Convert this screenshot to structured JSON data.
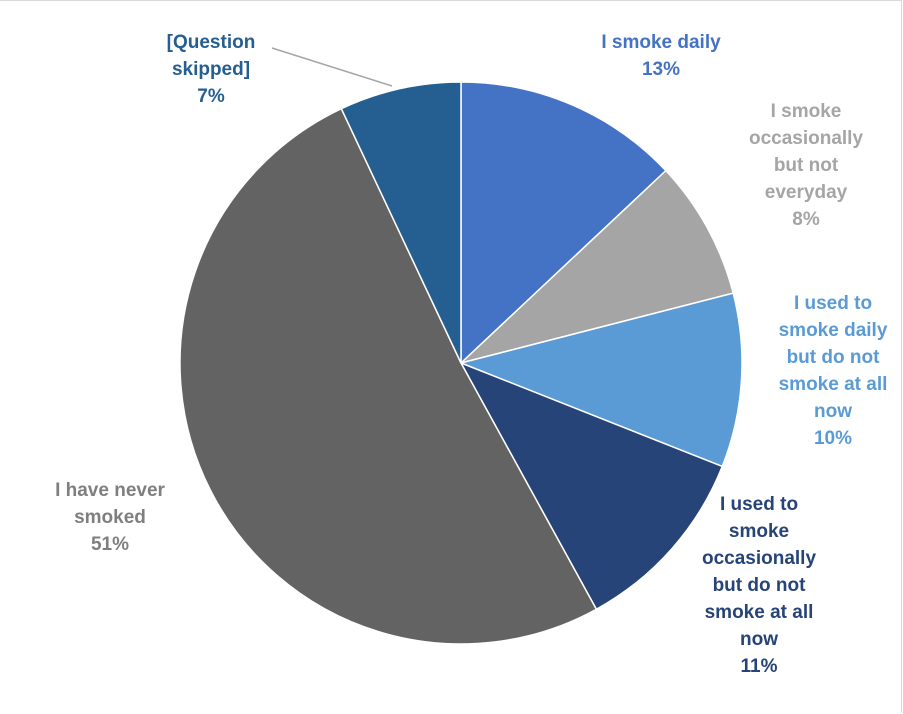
{
  "chart_data": {
    "type": "pie",
    "title": "",
    "start_angle_deg": 0,
    "direction": "clockwise",
    "slices": [
      {
        "label_lines": [
          "I smoke daily"
        ],
        "value": 13,
        "pct_label": "13%",
        "color": "#4472C4"
      },
      {
        "label_lines": [
          "I smoke",
          "occasionally",
          "but not",
          "everyday"
        ],
        "value": 8,
        "pct_label": "8%",
        "color": "#A5A5A5"
      },
      {
        "label_lines": [
          "I used to",
          "smoke daily",
          "but do not",
          "smoke at all",
          "now"
        ],
        "value": 10,
        "pct_label": "10%",
        "color": "#5B9BD5"
      },
      {
        "label_lines": [
          "I used to",
          "smoke",
          "occasionally",
          "but do not",
          "smoke at all",
          "now"
        ],
        "value": 11,
        "pct_label": "11%",
        "color": "#264478"
      },
      {
        "label_lines": [
          "I have never",
          "smoked"
        ],
        "value": 51,
        "pct_label": "51%",
        "color": "#636363"
      },
      {
        "label_lines": [
          "[Question",
          "skipped]"
        ],
        "value": 7,
        "pct_label": "7%",
        "color": "#255E91"
      }
    ],
    "label_colors": [
      "#4472C4",
      "#A5A5A5",
      "#5B9BD5",
      "#264478",
      "#7F7F7F",
      "#255E91"
    ]
  }
}
